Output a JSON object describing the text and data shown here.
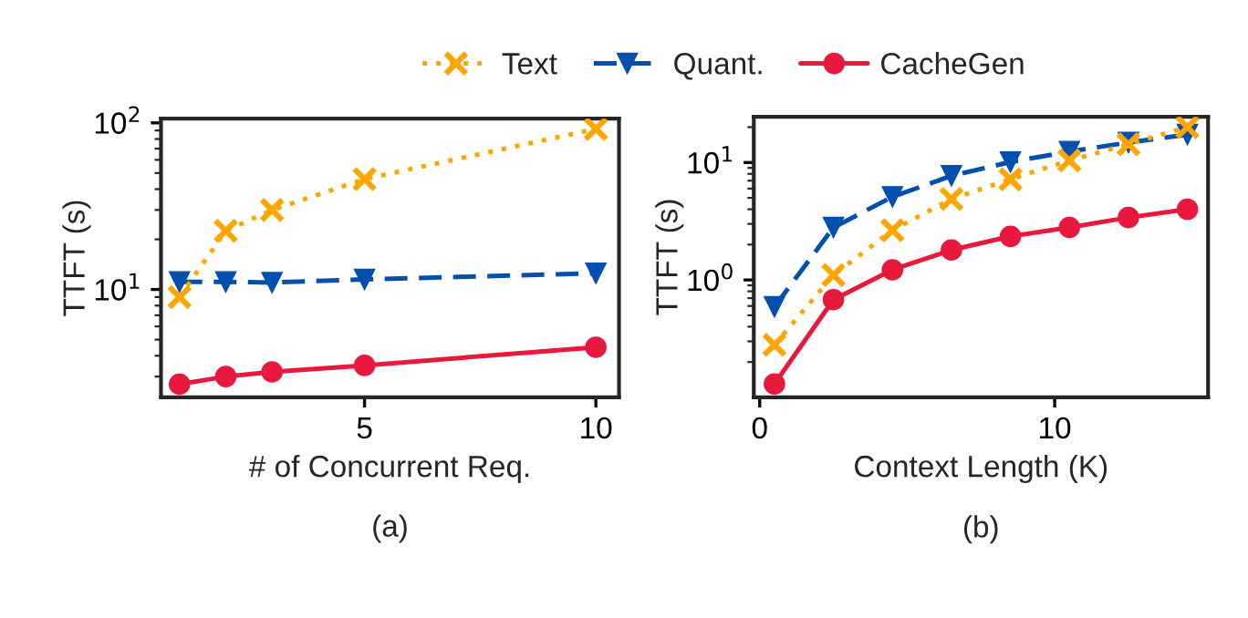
{
  "chart_data": [
    {
      "type": "line",
      "xlabel": "# of Concurrent Req.",
      "ylabel": "TTFT (s)",
      "annotations": [
        "(a)"
      ],
      "x": [
        1,
        2,
        3,
        5,
        10
      ],
      "xlim": [
        0.6,
        10.5
      ],
      "xticks": [
        5,
        10
      ],
      "ylim": [
        2.25,
        106
      ],
      "yticks": [
        {
          "value": 10,
          "label": "10$^{1}$"
        },
        {
          "value": 100,
          "label": "10$^{2}$"
        }
      ],
      "log": "y",
      "grid": false,
      "legend": "top",
      "series": [
        {
          "name": "Text",
          "color": "#ffa500",
          "values": [
            9.0,
            22.5,
            30,
            46,
            92
          ],
          "marker": "cross",
          "line_style": "dotted"
        },
        {
          "name": "Quant.",
          "color": "#0050b0",
          "values": [
            11.1,
            11.1,
            11.0,
            11.5,
            12.5
          ],
          "marker": "triangle",
          "line_style": "dashed"
        },
        {
          "name": "CacheGen",
          "color": "#e8193c",
          "values": [
            2.7,
            3.0,
            3.2,
            3.5,
            4.5
          ],
          "marker": "circle",
          "line_style": "solid"
        }
      ]
    },
    {
      "type": "line",
      "xlabel": "Context Length (K)",
      "ylabel": "TTFT (s)",
      "annotations": [
        "(b)"
      ],
      "x": [
        0.5,
        2.5,
        4.5,
        6.5,
        8.5,
        10.5,
        12.5,
        14.5
      ],
      "xlim": [
        -0.2,
        15.2
      ],
      "xticks": [
        0,
        10
      ],
      "ylim": [
        0.1,
        24.5
      ],
      "yticks": [
        {
          "value": 1,
          "label": "10$^{0}$"
        },
        {
          "value": 10,
          "label": "10$^{1}$"
        }
      ],
      "log": "y",
      "grid": false,
      "series": [
        {
          "color": "#ffa500",
          "values": [
            0.28,
            1.1,
            2.65,
            4.9,
            7.2,
            10.4,
            14.3,
            20
          ],
          "marker": "cross",
          "line_style": "dotted"
        },
        {
          "color": "#0050b0",
          "values": [
            0.59,
            2.8,
            5.1,
            7.7,
            10.1,
            12.4,
            14.8,
            17.3
          ],
          "marker": "triangle",
          "line_style": "dashed"
        },
        {
          "color": "#e8193c",
          "values": [
            0.13,
            0.68,
            1.22,
            1.8,
            2.35,
            2.8,
            3.4,
            4.0
          ],
          "marker": "circle",
          "line_style": "solid"
        }
      ]
    }
  ]
}
